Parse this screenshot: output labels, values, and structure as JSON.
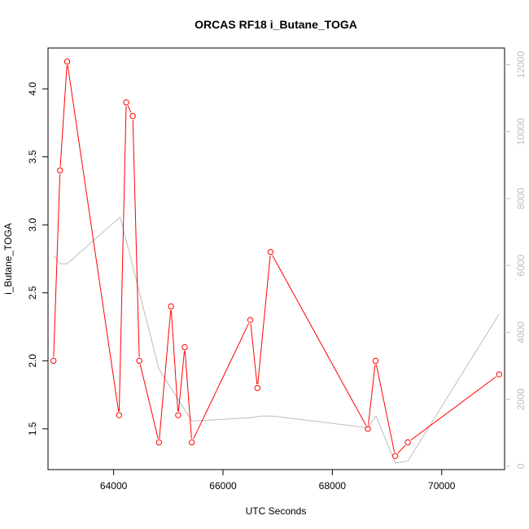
{
  "chart_data": {
    "type": "line",
    "title": "ORCAS RF18 i_Butane_TOGA",
    "xlabel": "UTC Seconds",
    "ylabel": "i_Butane_TOGA",
    "xlim": [
      62800,
      71150
    ],
    "ylim": [
      1.2,
      4.3
    ],
    "y2lim": [
      -100,
      12500
    ],
    "x_ticks": [
      64000,
      66000,
      68000,
      70000
    ],
    "y_ticks": [
      1.5,
      2.0,
      2.5,
      3.0,
      3.5,
      4.0
    ],
    "y2_ticks": [
      0,
      2000,
      4000,
      6000,
      8000,
      10000,
      12000
    ],
    "x_tick_labels": [
      "64000",
      "66000",
      "68000",
      "70000"
    ],
    "y_tick_labels": [
      "1.5",
      "2.0",
      "2.5",
      "3.0",
      "3.5",
      "4.0"
    ],
    "y2_tick_labels": [
      "0",
      "2000",
      "4000",
      "6000",
      "8000",
      "10000",
      "12000"
    ],
    "grid": false,
    "series": [
      {
        "axis": "left",
        "color": "#ff0000",
        "marker": "open-circle",
        "x": [
          62900,
          63020,
          63150,
          64100,
          64230,
          64350,
          64470,
          64830,
          65050,
          65180,
          65300,
          65430,
          66500,
          66630,
          66870,
          68650,
          68790,
          69150,
          69380,
          71050
        ],
        "y": [
          2.0,
          3.4,
          4.2,
          1.6,
          3.9,
          3.8,
          2.0,
          1.4,
          2.4,
          1.6,
          2.1,
          1.4,
          2.3,
          1.8,
          2.8,
          1.5,
          2.0,
          1.3,
          1.4,
          1.9
        ]
      },
      {
        "axis": "right",
        "color": "#bebebe",
        "marker": "none",
        "x": [
          62900,
          63020,
          63150,
          64120,
          64830,
          65430,
          66500,
          66700,
          66900,
          68650,
          68800,
          69150,
          69380,
          71050
        ],
        "y": [
          6300,
          6050,
          6050,
          7450,
          2900,
          1350,
          1450,
          1500,
          1500,
          1150,
          1500,
          100,
          150,
          4550
        ]
      }
    ]
  }
}
